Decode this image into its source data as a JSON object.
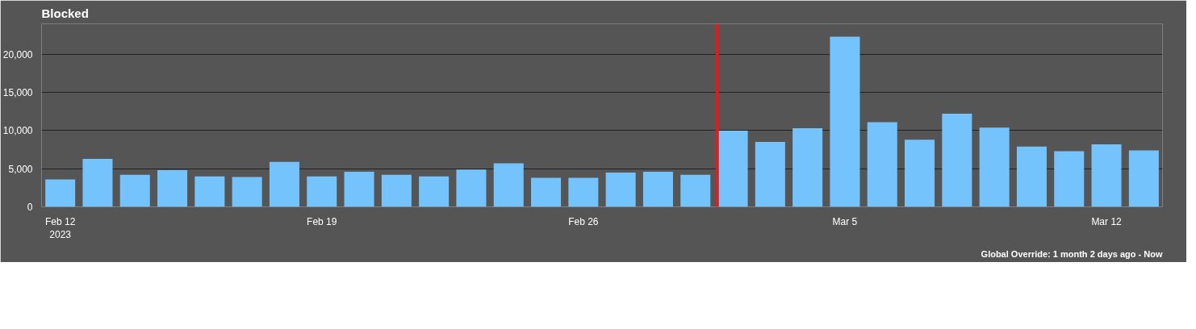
{
  "chart_data": {
    "type": "bar",
    "title": "Blocked",
    "x": [
      "2023-02-12",
      "2023-02-13",
      "2023-02-14",
      "2023-02-15",
      "2023-02-16",
      "2023-02-17",
      "2023-02-18",
      "2023-02-19",
      "2023-02-20",
      "2023-02-21",
      "2023-02-22",
      "2023-02-23",
      "2023-02-24",
      "2023-02-25",
      "2023-02-26",
      "2023-02-27",
      "2023-02-28",
      "2023-03-01",
      "2023-03-02",
      "2023-03-03",
      "2023-03-04",
      "2023-03-05",
      "2023-03-06",
      "2023-03-07",
      "2023-03-08",
      "2023-03-09",
      "2023-03-10",
      "2023-03-11",
      "2023-03-12",
      "2023-03-13"
    ],
    "series": [
      {
        "color": "#74c3fd",
        "values": [
          3600,
          6300,
          4200,
          4800,
          4000,
          3900,
          5900,
          4000,
          4600,
          4200,
          4000,
          4900,
          5700,
          3800,
          3800,
          4500,
          4600,
          4200,
          10000,
          8500,
          10300,
          22300,
          11100,
          8800,
          12200,
          10400,
          7900,
          7300,
          8200,
          7400
        ]
      }
    ],
    "xlim": [
      "2023-02-11T12:00",
      "2023-03-13T12:00"
    ],
    "xticks": [
      {
        "value": "2023-02-12",
        "label": "Feb 12\n2023"
      },
      {
        "value": "2023-02-19",
        "label": "Feb 19"
      },
      {
        "value": "2023-02-26",
        "label": "Feb 26"
      },
      {
        "value": "2023-03-05",
        "label": "Mar 5"
      },
      {
        "value": "2023-03-12",
        "label": "Mar 12"
      }
    ],
    "ylim": [
      0,
      24000
    ],
    "yticks": [
      {
        "value": 0,
        "label": "0"
      },
      {
        "value": 5000,
        "label": "5,000"
      },
      {
        "value": 10000,
        "label": "10,000"
      },
      {
        "value": 15000,
        "label": "15,000"
      },
      {
        "value": 20000,
        "label": "20,000"
      }
    ],
    "grid": "y",
    "ref_lines": [
      {
        "axis": "x",
        "value": "2023-03-01T14:00",
        "label": null,
        "color": "#e41b1b"
      }
    ],
    "annotations": [
      "Global Override: 1 month 2 days ago - Now"
    ]
  }
}
